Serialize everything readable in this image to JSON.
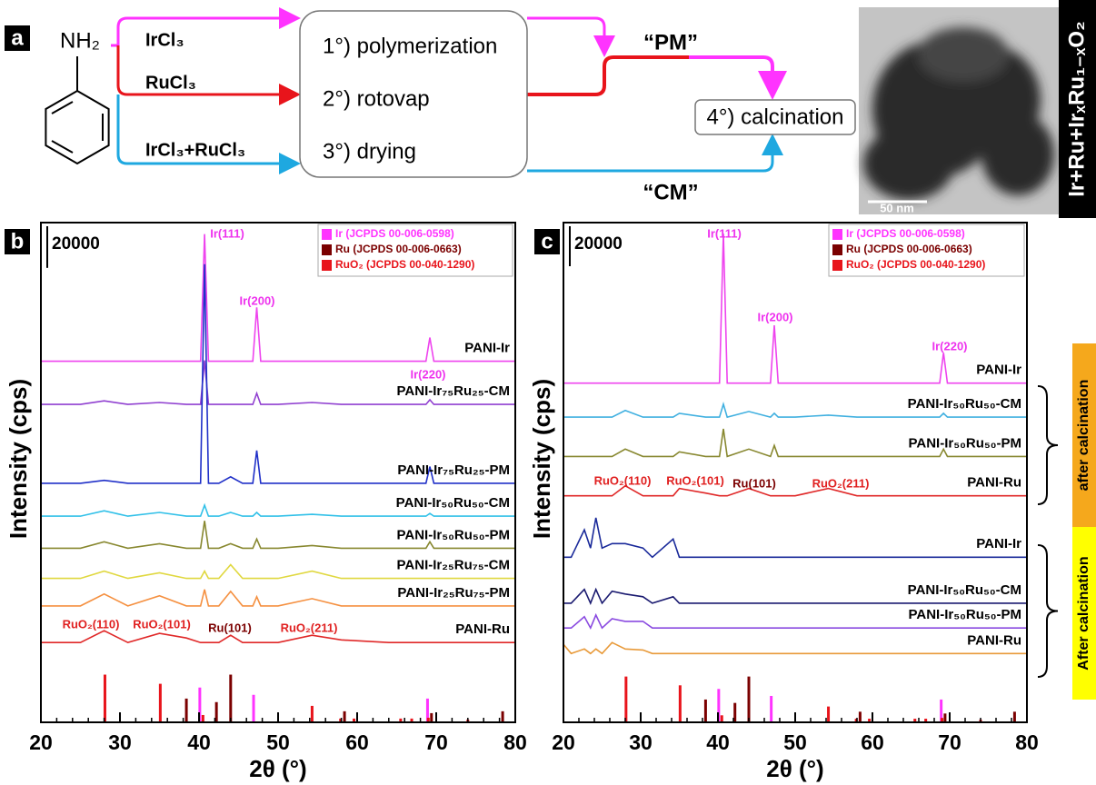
{
  "scheme": {
    "label": "a",
    "reagent": "NH₂",
    "inputs": [
      "IrCl₃",
      "RuCl₃",
      "IrCl₃+RuCl₃"
    ],
    "steps": [
      "1°) polymerization",
      "2°) rotovap",
      "3°) drying"
    ],
    "final_step": "4°) calcination",
    "routes": [
      "“PM”",
      "“CM”"
    ],
    "image": {
      "scale_bar": "50 nm",
      "caption": "Ir+Ru+IrₓRu₁₋ₓO₂"
    }
  },
  "chart_data": [
    {
      "type": "line",
      "panel": "b",
      "x_label": "2θ (°)",
      "y_label": "Intensity (cps)",
      "xlim": [
        20,
        80
      ],
      "xticks": [
        20,
        30,
        40,
        50,
        60,
        70,
        80
      ],
      "x_minor_step": 2,
      "ylim": [
        0,
        240000
      ],
      "scale_bar": 20000,
      "x": [
        20,
        25,
        28,
        31,
        35,
        38.4,
        40.2,
        40.7,
        41.2,
        42.5,
        44,
        45.5,
        46.8,
        47.3,
        47.8,
        50,
        54.3,
        58,
        64,
        68.7,
        69.2,
        69.7,
        72,
        80
      ],
      "series": [
        {
          "name": "PANI-Ir",
          "color": "#ee44ee",
          "values": [
            173400,
            173400,
            173400,
            173400,
            173400,
            173400,
            173400,
            234500,
            173400,
            173400,
            173400,
            173400,
            173400,
            199300,
            173400,
            173400,
            173400,
            173400,
            173400,
            173400,
            184800,
            173400,
            173400,
            173400
          ]
        },
        {
          "name": "PANI-Ir₇₅Ru₂₅-CM",
          "color": "#9040d0",
          "values": [
            152700,
            152700,
            154400,
            152700,
            153600,
            152700,
            152700,
            173800,
            152700,
            152700,
            152700,
            152700,
            152700,
            158000,
            152700,
            152700,
            153600,
            152700,
            152700,
            152700,
            154900,
            152700,
            152700,
            152700
          ]
        },
        {
          "name": "PANI-Ir₇₅Ru₂₅-PM",
          "color": "#2030c8",
          "values": [
            114800,
            114800,
            116200,
            114800,
            114800,
            114800,
            114800,
            220000,
            114800,
            114800,
            117900,
            114800,
            114800,
            130500,
            114800,
            114800,
            114800,
            114800,
            114800,
            114800,
            122800,
            114800,
            114800,
            114800
          ]
        },
        {
          "name": "PANI-Ir₅₀Ru₅₀-CM",
          "color": "#30c0e8",
          "values": [
            99000,
            99000,
            101600,
            99000,
            100800,
            99000,
            99000,
            104300,
            99000,
            99000,
            100800,
            99000,
            99000,
            100800,
            99000,
            99000,
            99900,
            99000,
            99000,
            99000,
            100300,
            99000,
            99000,
            99000
          ]
        },
        {
          "name": "PANI-Ir₅₀Ru₅₀-PM",
          "color": "#888830",
          "values": [
            83600,
            83600,
            86700,
            83600,
            85800,
            83600,
            83600,
            96800,
            83600,
            83600,
            85800,
            83600,
            83600,
            88000,
            83600,
            83600,
            84900,
            83600,
            83600,
            83600,
            86700,
            83600,
            83600,
            83600
          ]
        },
        {
          "name": "PANI-Ir₂₅Ru₇₅-CM",
          "color": "#e0d840",
          "values": [
            69100,
            69100,
            72600,
            69100,
            71800,
            69100,
            69100,
            72600,
            69100,
            69100,
            75700,
            69100,
            69100,
            69100,
            69100,
            69100,
            72600,
            69100,
            69100,
            69100,
            69100,
            69100,
            69100,
            69100
          ]
        },
        {
          "name": "PANI-Ir₂₅Ru₇₅-PM",
          "color": "#f59040",
          "values": [
            55900,
            55900,
            61600,
            55900,
            60800,
            55900,
            55900,
            63800,
            55900,
            55900,
            62900,
            55900,
            55900,
            60300,
            55900,
            55900,
            59400,
            55900,
            55900,
            55900,
            55900,
            55900,
            55900,
            55900
          ]
        },
        {
          "name": "PANI-Ru",
          "color": "#e02828",
          "values": [
            38300,
            38300,
            44000,
            38300,
            42700,
            40500,
            38300,
            38300,
            38300,
            38300,
            41800,
            38300,
            38300,
            38300,
            38300,
            38300,
            41800,
            39600,
            38300,
            38300,
            38300,
            38300,
            38300,
            38300
          ]
        }
      ],
      "references": [
        {
          "name": "Ir (JCPDS 00-006-0598)",
          "color": "#ff33ff",
          "x": [
            40.1,
            46.9,
            68.9
          ],
          "values": [
            16700,
            13200,
            11400
          ]
        },
        {
          "name": "Ru (JCPDS 00-006-0663)",
          "color": "#7b0000",
          "x": [
            38.4,
            42.2,
            44,
            58.4,
            69.4,
            78.4
          ],
          "values": [
            11400,
            9700,
            22900,
            5300,
            4400,
            5300
          ]
        },
        {
          "name": "RuO₂ (JCPDS 00-040-1290)",
          "color": "#e8141b",
          "x": [
            28.1,
            35.1,
            40.5,
            54.3,
            57.9,
            59.6,
            65.5,
            66.9,
            69,
            74
          ],
          "values": [
            22900,
            18500,
            3500,
            7900,
            1800,
            1800,
            1800,
            1800,
            2200,
            1300
          ]
        }
      ],
      "annotations": [
        {
          "text": "Ir(111)",
          "color": "#ee33ee"
        },
        {
          "text": "Ir(200)",
          "color": "#ee33ee"
        },
        {
          "text": "Ir(220)",
          "color": "#ee33ee"
        },
        {
          "text": "RuO₂(110)",
          "color": "#e02020"
        },
        {
          "text": "RuO₂(101)",
          "color": "#e02020"
        },
        {
          "text": "Ru(101)",
          "color": "#7b0000"
        },
        {
          "text": "RuO₂(211)",
          "color": "#e02020"
        }
      ]
    },
    {
      "type": "line",
      "panel": "c",
      "x_label": "2θ (°)",
      "y_label": "Intensity (cps)",
      "xlim": [
        20,
        80
      ],
      "xticks": [
        20,
        30,
        40,
        50,
        60,
        70,
        80
      ],
      "x_minor_step": 2,
      "ylim": [
        0,
        250000
      ],
      "scale_bar": 20000,
      "x": [
        20,
        21,
        22.7,
        23.5,
        24.2,
        25,
        26.3,
        28,
        30.3,
        31.5,
        34.2,
        35,
        38.4,
        40.2,
        40.7,
        41.2,
        44,
        46.8,
        47.3,
        47.8,
        50,
        54.3,
        58,
        68.7,
        69.2,
        69.7,
        72,
        80
      ],
      "series": [
        {
          "name": "PANI-Ir",
          "color": "#ee44ee",
          "values": [
            169700,
            169700,
            169700,
            169700,
            169700,
            169700,
            169700,
            169700,
            169700,
            169700,
            169700,
            169700,
            169700,
            169700,
            244500,
            169700,
            169700,
            169700,
            198600,
            169700,
            169700,
            169700,
            169700,
            169700,
            184900,
            169700,
            169700,
            169700
          ]
        },
        {
          "name": "PANI-Ir₅₀Ru₅₀-CM",
          "color": "#40b0e0",
          "values": [
            152700,
            152700,
            152700,
            152700,
            152700,
            152700,
            152700,
            156000,
            152700,
            152700,
            152700,
            154600,
            152700,
            152700,
            159200,
            152700,
            155500,
            152700,
            154600,
            152700,
            152700,
            153700,
            152700,
            152700,
            154600,
            152700,
            152700,
            152700
          ]
        },
        {
          "name": "PANI-Ir₅₀Ru₅₀-PM",
          "color": "#888830",
          "values": [
            133000,
            133000,
            133000,
            133000,
            133000,
            133000,
            133000,
            136700,
            133000,
            133000,
            133000,
            135300,
            133000,
            133000,
            146800,
            133000,
            136700,
            133000,
            138500,
            133000,
            133000,
            133000,
            133000,
            133000,
            136700,
            133000,
            133000,
            133000
          ]
        },
        {
          "name": "PANI-Ru",
          "color": "#e02828",
          "values": [
            113300,
            113300,
            113300,
            113300,
            113300,
            113300,
            113300,
            118300,
            113300,
            113300,
            113300,
            117000,
            114700,
            113300,
            113300,
            113300,
            117000,
            113300,
            113300,
            113300,
            113300,
            117000,
            113300,
            113300,
            113300,
            113300,
            113300,
            113300
          ]
        },
        {
          "name": "PANI-Ir",
          "color": "#1a2a9a",
          "values": [
            82600,
            82600,
            96300,
            87200,
            102300,
            87200,
            89400,
            89400,
            87200,
            82600,
            91700,
            82600,
            82600,
            82600,
            82600,
            82600,
            82600,
            82600,
            82600,
            82600,
            82600,
            82600,
            82600,
            82600,
            82600,
            82600,
            82600,
            82600
          ]
        },
        {
          "name": "PANI-Ir₅₀Ru₅₀-CM",
          "color": "#1a1a70",
          "values": [
            59600,
            59600,
            66500,
            59600,
            66500,
            59600,
            65600,
            64200,
            62800,
            59600,
            62800,
            59600,
            59600,
            59600,
            59600,
            59600,
            59600,
            59600,
            59600,
            59600,
            59600,
            59600,
            59600,
            59600,
            59600,
            59600,
            59600,
            59600
          ]
        },
        {
          "name": "PANI-Ir₅₀Ru₅₀-PM",
          "color": "#8a4ae0",
          "values": [
            47200,
            47200,
            52800,
            47200,
            53700,
            47200,
            51800,
            50500,
            50500,
            47200,
            47200,
            47200,
            47200,
            47200,
            47200,
            47200,
            47200,
            47200,
            47200,
            47200,
            47200,
            47200,
            47200,
            47200,
            47200,
            47200,
            47200,
            47200
          ]
        },
        {
          "name": "PANI-Ru",
          "color": "#e89a3a",
          "values": [
            39000,
            34400,
            36700,
            34400,
            36700,
            34400,
            39900,
            36700,
            36200,
            34400,
            34400,
            34400,
            34400,
            34400,
            34400,
            34400,
            34400,
            34400,
            34400,
            34400,
            34400,
            34400,
            34400,
            34400,
            34400,
            34400,
            34400,
            34400
          ]
        }
      ],
      "references": [
        {
          "name": "Ir (JCPDS 00-006-0598)",
          "color": "#ff33ff",
          "x": [
            40.1,
            46.9,
            68.9
          ],
          "values": [
            16700,
            13200,
            11400
          ]
        },
        {
          "name": "Ru (JCPDS 00-006-0663)",
          "color": "#7b0000",
          "x": [
            38.4,
            42.2,
            44,
            58.4,
            69.4,
            78.4
          ],
          "values": [
            11400,
            9700,
            22900,
            5300,
            4400,
            5300
          ]
        },
        {
          "name": "RuO₂ (JCPDS 00-040-1290)",
          "color": "#e8141b",
          "x": [
            28.1,
            35.1,
            40.5,
            54.3,
            57.9,
            59.6,
            65.5,
            66.9,
            69,
            74
          ],
          "values": [
            22900,
            18500,
            3500,
            7900,
            1800,
            1800,
            1800,
            1800,
            2200,
            1300
          ]
        }
      ],
      "annotations": [
        {
          "text": "Ir(111)",
          "color": "#ee33ee"
        },
        {
          "text": "Ir(200)",
          "color": "#ee33ee"
        },
        {
          "text": "Ir(220)",
          "color": "#ee33ee"
        },
        {
          "text": "RuO₂(110)",
          "color": "#e02020"
        },
        {
          "text": "RuO₂(101)",
          "color": "#e02020"
        },
        {
          "text": "Ru(101)",
          "color": "#7b0000"
        },
        {
          "text": "RuO₂(211)",
          "color": "#e02020"
        }
      ],
      "group_labels": [
        {
          "text": "after calcination",
          "color": "#f5a81c"
        },
        {
          "text": "After calcination",
          "color": "#ffff00"
        }
      ]
    }
  ]
}
